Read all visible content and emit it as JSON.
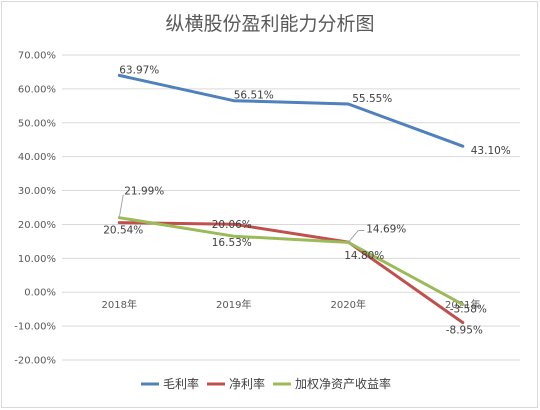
{
  "chart_data": {
    "type": "line",
    "title": "纵横股份盈利能力分析图",
    "categories": [
      "2018年",
      "2019年",
      "2020年",
      "2021年"
    ],
    "ylim": [
      -20,
      70
    ],
    "ytick_labels": [
      "70.00%",
      "60.00%",
      "50.00%",
      "40.00%",
      "30.00%",
      "20.00%",
      "10.00%",
      "0.00%",
      "-10.00%",
      "-20.00%"
    ],
    "grid": true,
    "legend_position": "bottom",
    "series": [
      {
        "name": "毛利率",
        "color": "#4f81bd",
        "values": [
          63.97,
          56.51,
          55.55,
          43.1
        ],
        "labels": [
          "63.97%",
          "56.51%",
          "55.55%",
          "43.10%"
        ]
      },
      {
        "name": "净利率",
        "color": "#c0504d",
        "values": [
          20.54,
          20.06,
          14.8,
          -8.95
        ],
        "labels": [
          "20.54%",
          "20.06%",
          "14.80%",
          "-8.95%"
        ]
      },
      {
        "name": "加权净资产收益率",
        "color": "#9bbb59",
        "values": [
          21.99,
          16.53,
          14.69,
          -3.58
        ],
        "labels": [
          "21.99%",
          "16.53%",
          "14.69%",
          "-3.58%"
        ]
      }
    ]
  }
}
